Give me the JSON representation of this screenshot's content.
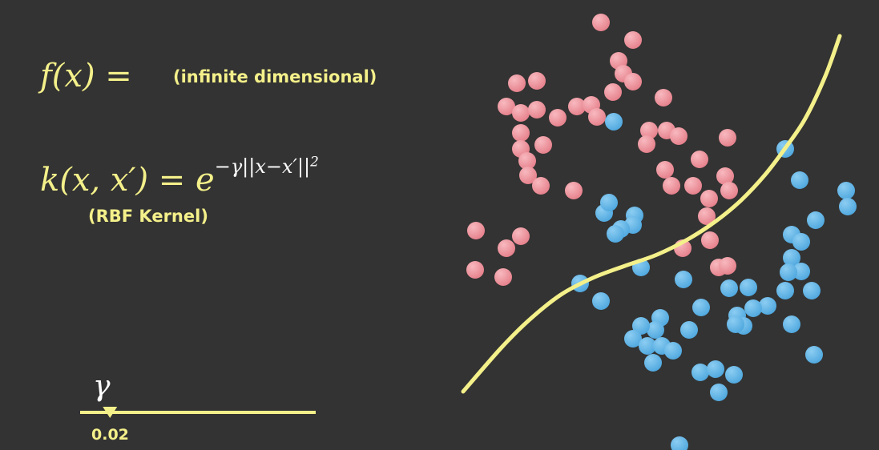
{
  "formula": {
    "fx_lhs": "f(x) =",
    "fx_note": "(infinite dimensional)",
    "kernel_lhs": "k(x, x′) = e",
    "kernel_exp": "−γ||x−x′||",
    "kernel_exp_power": "2",
    "kernel_note": "(RBF Kernel)"
  },
  "slider": {
    "symbol": "γ",
    "value": 0.02,
    "value_label": "0.02",
    "min": 0,
    "max": 1
  },
  "colors": {
    "background": "#333333",
    "accent": "#f4f08a",
    "class_red": "#ee8f98",
    "class_blue": "#62b5e6",
    "boundary": "#f4f08a"
  },
  "chart_data": {
    "type": "scatter",
    "series": [
      {
        "class": "red",
        "points": [
          [
            750,
            28
          ],
          [
            790,
            50
          ],
          [
            772,
            76
          ],
          [
            778,
            92
          ],
          [
            790,
            102
          ],
          [
            645,
            104
          ],
          [
            670,
            101
          ],
          [
            765,
            115
          ],
          [
            828,
            122
          ],
          [
            632,
            133
          ],
          [
            650,
            141
          ],
          [
            670,
            137
          ],
          [
            720,
            133
          ],
          [
            738,
            131
          ],
          [
            696,
            147
          ],
          [
            745,
            146
          ],
          [
            650,
            166
          ],
          [
            678,
            181
          ],
          [
            650,
            186
          ],
          [
            658,
            201
          ],
          [
            810,
            163
          ],
          [
            832,
            163
          ],
          [
            847,
            170
          ],
          [
            807,
            180
          ],
          [
            908,
            172
          ],
          [
            873,
            199
          ],
          [
            830,
            212
          ],
          [
            905,
            220
          ],
          [
            865,
            232
          ],
          [
            910,
            238
          ],
          [
            838,
            232
          ],
          [
            659,
            219
          ],
          [
            675,
            232
          ],
          [
            716,
            238
          ],
          [
            885,
            248
          ],
          [
            882,
            270
          ],
          [
            886,
            300
          ],
          [
            852,
            310
          ],
          [
            650,
            295
          ],
          [
            632,
            310
          ],
          [
            594,
            288
          ],
          [
            593,
            337
          ],
          [
            628,
            346
          ],
          [
            897,
            334
          ],
          [
            908,
            332
          ]
        ]
      },
      {
        "class": "blue",
        "points": [
          [
            766,
            152
          ],
          [
            980,
            186
          ],
          [
            998,
            225
          ],
          [
            1056,
            238
          ],
          [
            1058,
            258
          ],
          [
            754,
            266
          ],
          [
            760,
            253
          ],
          [
            792,
            269
          ],
          [
            790,
            281
          ],
          [
            775,
            286
          ],
          [
            768,
            292
          ],
          [
            1018,
            275
          ],
          [
            988,
            293
          ],
          [
            1000,
            302
          ],
          [
            988,
            322
          ],
          [
            1000,
            339
          ],
          [
            984,
            340
          ],
          [
            1013,
            363
          ],
          [
            980,
            363
          ],
          [
            800,
            334
          ],
          [
            853,
            349
          ],
          [
            724,
            354
          ],
          [
            750,
            376
          ],
          [
            910,
            360
          ],
          [
            934,
            359
          ],
          [
            875,
            384
          ],
          [
            958,
            382
          ],
          [
            940,
            385
          ],
          [
            920,
            394
          ],
          [
            928,
            407
          ],
          [
            918,
            405
          ],
          [
            824,
            397
          ],
          [
            818,
            412
          ],
          [
            800,
            407
          ],
          [
            790,
            423
          ],
          [
            808,
            432
          ],
          [
            826,
            432
          ],
          [
            840,
            438
          ],
          [
            860,
            412
          ],
          [
            988,
            405
          ],
          [
            1016,
            443
          ],
          [
            815,
            453
          ],
          [
            874,
            465
          ],
          [
            893,
            461
          ],
          [
            916,
            468
          ],
          [
            897,
            490
          ],
          [
            848,
            556
          ]
        ]
      }
    ],
    "boundary": [
      [
        578,
        489
      ],
      [
        625,
        435
      ],
      [
        660,
        400
      ],
      [
        700,
        368
      ],
      [
        740,
        347
      ],
      [
        780,
        332
      ],
      [
        820,
        318
      ],
      [
        860,
        298
      ],
      [
        895,
        275
      ],
      [
        925,
        250
      ],
      [
        955,
        218
      ],
      [
        980,
        185
      ],
      [
        1005,
        148
      ],
      [
        1030,
        95
      ],
      [
        1048,
        45
      ]
    ]
  }
}
